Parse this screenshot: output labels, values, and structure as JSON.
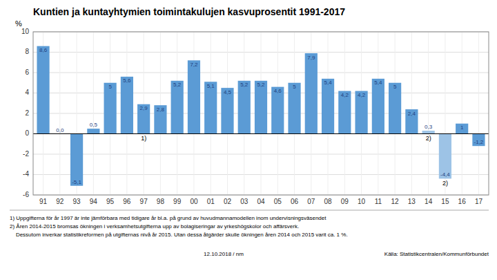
{
  "chart_data": {
    "type": "bar",
    "title": "Kuntien ja kuntayhtymien toimintakulujen kasvuprosentit 1991-2017",
    "y_label": "%",
    "categories": [
      "91",
      "92",
      "93",
      "94",
      "95",
      "96",
      "97",
      "98",
      "99",
      "00",
      "01",
      "02",
      "03",
      "04",
      "05",
      "06",
      "07",
      "08",
      "09",
      "10",
      "11",
      "12",
      "13",
      "14",
      "15",
      "16",
      "17"
    ],
    "values": [
      8.6,
      0.0,
      -5.1,
      0.5,
      5.0,
      5.6,
      2.9,
      2.8,
      5.2,
      7.2,
      5.1,
      4.5,
      5.2,
      5.2,
      4.6,
      5.0,
      7.9,
      5.4,
      4.2,
      4.2,
      5.4,
      5.0,
      2.4,
      0.3,
      -4.4,
      1.0,
      -1.2
    ],
    "value_labels": [
      "8,6",
      "0,0",
      "-5,1",
      "0,5",
      "5",
      "5,6",
      "2,9",
      "2,8",
      "5,2",
      "7,2",
      "5,1",
      "4,5",
      "5,2",
      "5,2",
      "4,6",
      "5",
      "7,9",
      "5,4",
      "4,2",
      "4,2",
      "5,4",
      "5",
      "2,4",
      "0,3",
      "-4,4",
      "1",
      "-1,2"
    ],
    "colors": [
      "#5b9bd5",
      "#5b9bd5",
      "#5b9bd5",
      "#5b9bd5",
      "#5b9bd5",
      "#5b9bd5",
      "#5b9bd5",
      "#5b9bd5",
      "#5b9bd5",
      "#5b9bd5",
      "#5b9bd5",
      "#5b9bd5",
      "#5b9bd5",
      "#5b9bd5",
      "#5b9bd5",
      "#5b9bd5",
      "#5b9bd5",
      "#5b9bd5",
      "#5b9bd5",
      "#5b9bd5",
      "#5b9bd5",
      "#5b9bd5",
      "#5b9bd5",
      "#9dc3e6",
      "#9dc3e6",
      "#5b9bd5",
      "#5b9bd5"
    ],
    "ylim": [
      -6,
      10
    ],
    "yticks": [
      -6,
      -4,
      -2,
      0,
      2,
      4,
      6,
      8,
      10
    ],
    "grid": true,
    "data_labels": true,
    "annotations": [
      {
        "text": "1)",
        "category": "97"
      },
      {
        "text": "2)",
        "category": "14"
      },
      {
        "text": "2)",
        "category": "15"
      }
    ],
    "footnotes": [
      "1) Uppgifterna för år 1997 är inte jämförbara med tidigare år bl.a. på grund av huvudmannamodellen inom undervisningsväsendet",
      "2) Åren 2014-2015 bromsas ökningen i verksamhetsutgifterna upp av bolagiseringar av yrkeshögskolor och affärsverk.",
      "    Dessutom inverkar statistikreformen på utgifternas nivå år 2015. Utan dessa åtgärder skulle ökningen åren 2014 och 2015 varit ca. 1 %."
    ],
    "source": "Källa: Statistikcentralen/Kommunförbundet",
    "date": "12.10.2018 / nm"
  }
}
